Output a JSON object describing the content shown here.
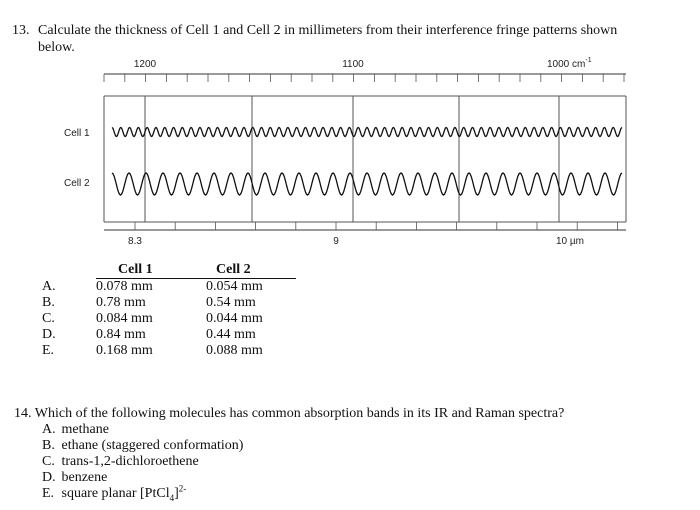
{
  "q13": {
    "number": "13.",
    "text_line1": "Calculate the thickness of Cell 1 and Cell 2 in millimeters from their interference fringe patterns shown",
    "text_line2": "below."
  },
  "spectrum": {
    "top_axis": {
      "ticks": [
        "1200",
        "1100"
      ],
      "end_label": "1000",
      "unit": "cm",
      "exponent": "-1"
    },
    "bottom_axis": {
      "ticks": [
        "8.3",
        "9"
      ],
      "end_label": "10",
      "unit": "µm"
    },
    "cells": [
      {
        "label": "Cell 1",
        "fringes": 58
      },
      {
        "label": "Cell 2",
        "fringes": 30
      }
    ]
  },
  "answers": {
    "headers": [
      "Cell 1",
      "Cell 2"
    ],
    "rows": [
      {
        "letter": "A.",
        "cell1": "0.078 mm",
        "cell2": "0.054 mm"
      },
      {
        "letter": "B.",
        "cell1": "0.78 mm",
        "cell2": "0.54 mm"
      },
      {
        "letter": "C.",
        "cell1": "0.084 mm",
        "cell2": "0.044 mm"
      },
      {
        "letter": "D.",
        "cell1": "0.84 mm",
        "cell2": "0.44 mm"
      },
      {
        "letter": "E.",
        "cell1": "0.168 mm",
        "cell2": "0.088 mm"
      }
    ]
  },
  "q14": {
    "number": "14.",
    "text": "Which of the following molecules has common absorption bands in its IR and Raman spectra?",
    "options": [
      {
        "letter": "A.",
        "text": "methane"
      },
      {
        "letter": "B.",
        "text": "ethane (staggered conformation)"
      },
      {
        "letter": "C.",
        "text": "trans-1,2-dichloroethene"
      },
      {
        "letter": "D.",
        "text": "benzene"
      },
      {
        "letter": "E.",
        "text_prefix": "square planar [PtCl",
        "sub": "4",
        "text_suffix": "]",
        "sup": "2-"
      }
    ]
  }
}
